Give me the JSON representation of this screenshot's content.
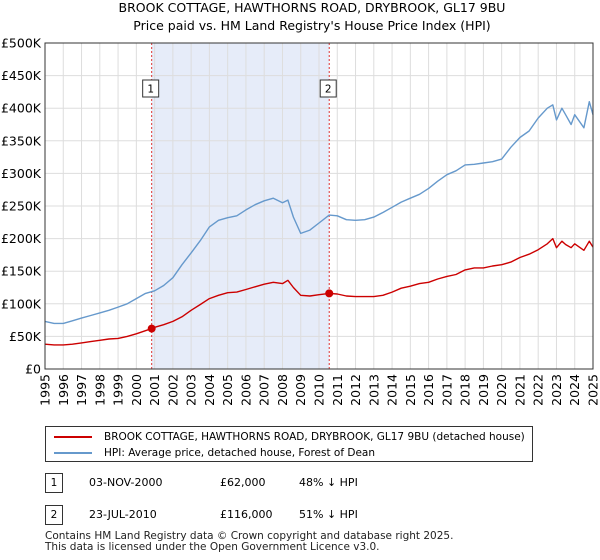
{
  "chart_data": {
    "type": "line",
    "title": "BROOK COTTAGE, HAWTHORNS ROAD, DRYBROOK, GL17 9BU",
    "subtitle": "Price paid vs. HM Land Registry's House Price Index (HPI)",
    "xlabel": "",
    "ylabel": "",
    "xlim": [
      1995,
      2025
    ],
    "ylim": [
      0,
      500000
    ],
    "x_ticks": [
      1995,
      1996,
      1997,
      1998,
      1999,
      2000,
      2001,
      2002,
      2003,
      2004,
      2005,
      2006,
      2007,
      2008,
      2009,
      2010,
      2011,
      2012,
      2013,
      2014,
      2015,
      2016,
      2017,
      2018,
      2019,
      2020,
      2021,
      2022,
      2023,
      2024,
      2025
    ],
    "y_ticks": [
      {
        "value": 0,
        "label": "£0"
      },
      {
        "value": 50000,
        "label": "£50K"
      },
      {
        "value": 100000,
        "label": "£100K"
      },
      {
        "value": 150000,
        "label": "£150K"
      },
      {
        "value": 200000,
        "label": "£200K"
      },
      {
        "value": 250000,
        "label": "£250K"
      },
      {
        "value": 300000,
        "label": "£300K"
      },
      {
        "value": 350000,
        "label": "£350K"
      },
      {
        "value": 400000,
        "label": "£400K"
      },
      {
        "value": 450000,
        "label": "£450K"
      },
      {
        "value": 500000,
        "label": "£500K"
      }
    ],
    "grid": true,
    "shaded_period": [
      2000.84,
      2010.56
    ],
    "series": [
      {
        "name": "BROOK COTTAGE, HAWTHORNS ROAD, DRYBROOK, GL17 9BU (detached house)",
        "color": "#cc0000",
        "x": [
          1995,
          1995.5,
          1996,
          1996.5,
          1997,
          1997.5,
          1998,
          1998.5,
          1999,
          1999.5,
          2000,
          2000.84,
          2001,
          2001.5,
          2002,
          2002.5,
          2003,
          2003.5,
          2004,
          2004.5,
          2005,
          2005.5,
          2006,
          2006.5,
          2007,
          2007.5,
          2008,
          2008.3,
          2008.6,
          2009,
          2009.5,
          2010,
          2010.56,
          2011,
          2011.5,
          2012,
          2012.5,
          2013,
          2013.5,
          2014,
          2014.5,
          2015,
          2015.5,
          2016,
          2016.5,
          2017,
          2017.5,
          2018,
          2018.5,
          2019,
          2019.5,
          2020,
          2020.5,
          2021,
          2021.5,
          2022,
          2022.5,
          2022.8,
          2023,
          2023.3,
          2023.5,
          2023.8,
          2024,
          2024.5,
          2024.8,
          2025
        ],
        "values": [
          38000,
          37000,
          37000,
          38000,
          40000,
          42000,
          44000,
          46000,
          47000,
          50000,
          54000,
          62000,
          64000,
          68000,
          73000,
          80000,
          90000,
          99000,
          108000,
          113000,
          117000,
          118000,
          122000,
          126000,
          130000,
          133000,
          131000,
          136000,
          125000,
          113000,
          112000,
          114000,
          116000,
          115000,
          112000,
          111000,
          111000,
          111000,
          113000,
          118000,
          124000,
          127000,
          131000,
          133000,
          138000,
          142000,
          145000,
          152000,
          155000,
          155000,
          158000,
          160000,
          164000,
          171000,
          176000,
          183000,
          192000,
          200000,
          186000,
          196000,
          191000,
          186000,
          192000,
          182000,
          196000,
          187000
        ]
      },
      {
        "name": "HPI: Average price, detached house, Forest of Dean",
        "color": "#6699cc",
        "x": [
          1995,
          1995.5,
          1996,
          1996.5,
          1997,
          1997.5,
          1998,
          1998.5,
          1999,
          1999.5,
          2000,
          2000.5,
          2001,
          2001.5,
          2002,
          2002.5,
          2003,
          2003.5,
          2004,
          2004.5,
          2005,
          2005.5,
          2006,
          2006.5,
          2007,
          2007.5,
          2008,
          2008.3,
          2008.6,
          2009,
          2009.5,
          2010,
          2010.56,
          2011,
          2011.5,
          2012,
          2012.5,
          2013,
          2013.5,
          2014,
          2014.5,
          2015,
          2015.5,
          2016,
          2016.5,
          2017,
          2017.5,
          2018,
          2018.5,
          2019,
          2019.5,
          2020,
          2020.5,
          2021,
          2021.5,
          2022,
          2022.5,
          2022.8,
          2023,
          2023.3,
          2023.5,
          2023.8,
          2024,
          2024.5,
          2024.8,
          2025
        ],
        "values": [
          73000,
          70000,
          70000,
          74000,
          78000,
          82000,
          86000,
          90000,
          95000,
          100000,
          108000,
          116000,
          120000,
          128000,
          140000,
          160000,
          178000,
          197000,
          218000,
          228000,
          232000,
          235000,
          244000,
          252000,
          258000,
          262000,
          255000,
          259000,
          233000,
          208000,
          213000,
          224000,
          236000,
          235000,
          229000,
          228000,
          229000,
          233000,
          240000,
          248000,
          256000,
          262000,
          268000,
          277000,
          288000,
          298000,
          304000,
          313000,
          314000,
          316000,
          318000,
          322000,
          340000,
          355000,
          365000,
          385000,
          400000,
          405000,
          382000,
          400000,
          390000,
          375000,
          390000,
          370000,
          410000,
          390000
        ]
      }
    ],
    "sales": [
      {
        "num": "1",
        "x": 2000.84,
        "value": 62000,
        "date": "03-NOV-2000",
        "price": "£62,000",
        "hpi": "48% ↓ HPI"
      },
      {
        "num": "2",
        "x": 2010.56,
        "value": 116000,
        "date": "23-JUL-2010",
        "price": "£116,000",
        "hpi": "51% ↓ HPI"
      }
    ],
    "footer": [
      "Contains HM Land Registry data © Crown copyright and database right 2025.",
      "This data is licensed under the Open Government Licence v3.0."
    ]
  }
}
